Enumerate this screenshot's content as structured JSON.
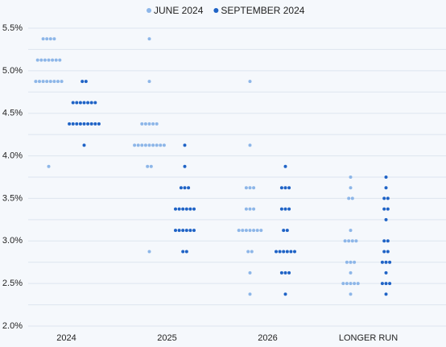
{
  "chart_data": {
    "type": "dot",
    "categories": [
      "2024",
      "2025",
      "2026",
      "LONGER RUN"
    ],
    "series": [
      {
        "name": "JUNE 2024",
        "color": "#8db6e8",
        "values": [
          [
            5.375,
            5.375,
            5.375,
            5.375,
            5.125,
            5.125,
            5.125,
            5.125,
            5.125,
            5.125,
            5.125,
            4.875,
            4.875,
            4.875,
            4.875,
            4.875,
            4.875,
            4.875,
            4.875,
            3.875
          ],
          [
            5.375,
            4.875,
            4.375,
            4.375,
            4.375,
            4.375,
            4.375,
            4.125,
            4.125,
            4.125,
            4.125,
            4.125,
            4.125,
            4.125,
            4.125,
            4.125,
            3.875,
            3.875,
            2.875
          ],
          [
            4.875,
            4.125,
            3.625,
            3.625,
            3.625,
            3.375,
            3.375,
            3.375,
            3.125,
            3.125,
            3.125,
            3.125,
            3.125,
            3.125,
            3.125,
            2.875,
            2.875,
            2.625,
            2.375
          ],
          [
            3.75,
            3.625,
            3.5,
            3.5,
            3.125,
            3.0,
            3.0,
            3.0,
            3.0,
            2.75,
            2.75,
            2.75,
            2.625,
            2.5,
            2.5,
            2.5,
            2.5,
            2.5,
            2.375
          ]
        ]
      },
      {
        "name": "SEPTEMBER 2024",
        "color": "#1f63c6",
        "values": [
          [
            4.875,
            4.875,
            4.625,
            4.625,
            4.625,
            4.625,
            4.625,
            4.625,
            4.625,
            4.375,
            4.375,
            4.375,
            4.375,
            4.375,
            4.375,
            4.375,
            4.375,
            4.375,
            4.125
          ],
          [
            4.125,
            3.875,
            3.625,
            3.625,
            3.625,
            3.375,
            3.375,
            3.375,
            3.375,
            3.375,
            3.375,
            3.125,
            3.125,
            3.125,
            3.125,
            3.125,
            3.125,
            2.875,
            2.875
          ],
          [
            3.875,
            3.625,
            3.625,
            3.625,
            3.375,
            3.375,
            3.375,
            3.125,
            3.125,
            2.875,
            2.875,
            2.875,
            2.875,
            2.875,
            2.875,
            2.625,
            2.625,
            2.625,
            2.375
          ],
          [
            3.75,
            3.625,
            3.5,
            3.5,
            3.375,
            3.375,
            3.25,
            3.0,
            3.0,
            2.875,
            2.875,
            2.75,
            2.75,
            2.75,
            2.625,
            2.5,
            2.5,
            2.5,
            2.375
          ]
        ]
      }
    ],
    "ylim": [
      2.0,
      5.5
    ],
    "yticks": [
      {
        "value": 2.0,
        "label": "2.0%"
      },
      {
        "value": 2.5,
        "label": "2.5%"
      },
      {
        "value": 3.0,
        "label": "3.0%"
      },
      {
        "value": 3.5,
        "label": "3.5%"
      },
      {
        "value": 4.0,
        "label": "4.0%"
      },
      {
        "value": 4.5,
        "label": "4.5%"
      },
      {
        "value": 5.0,
        "label": "5.0%"
      },
      {
        "value": 5.5,
        "label": "5.5%"
      }
    ],
    "grid_lines": [
      2.0,
      2.25,
      2.5,
      2.75,
      3.0,
      3.25,
      3.5,
      3.75,
      4.0,
      4.25,
      4.5,
      4.75,
      5.0,
      5.25,
      5.5
    ],
    "legend": "top"
  }
}
